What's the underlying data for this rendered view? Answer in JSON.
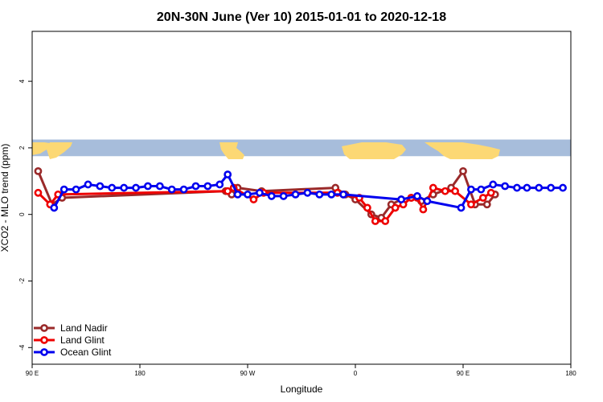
{
  "chart_data": {
    "type": "line",
    "title": "20N-30N June (Ver 10)   2015-01-01 to 2020-12-18",
    "xlabel": "Longitude",
    "ylabel": "XCO2 - MLO trend (ppm)",
    "xlim": [
      -90,
      180
    ],
    "ylim": [
      -4.5,
      5.5
    ],
    "x_ticks": [
      {
        "value": -90,
        "label": "90 E"
      },
      {
        "value": -36,
        "label": "180"
      },
      {
        "value": 18,
        "label": "90 W"
      },
      {
        "value": 72,
        "label": "0"
      },
      {
        "value": 126,
        "label": "90 E"
      },
      {
        "value": 180,
        "label": "180"
      }
    ],
    "y_ticks": [
      {
        "value": -4,
        "label": "-4"
      },
      {
        "value": -2,
        "label": "-2"
      },
      {
        "value": 0,
        "label": "0"
      },
      {
        "value": 2,
        "label": "2"
      },
      {
        "value": 4,
        "label": "4"
      }
    ],
    "map_band": {
      "y_range": [
        1.75,
        2.25
      ],
      "ocean_color": "#a7bddb",
      "land_color": "#fcd874"
    },
    "legend_position": "bottom-left",
    "series": [
      {
        "name": "Land Nadir",
        "color": "#9a2a2a",
        "x": [
          -87,
          -80,
          -75,
          7,
          10,
          13,
          25,
          62,
          67,
          72,
          80,
          85,
          90,
          95,
          100,
          105,
          111,
          120,
          126,
          132,
          138,
          142
        ],
        "y": [
          1.3,
          0.3,
          0.5,
          0.7,
          0.6,
          0.8,
          0.7,
          0.8,
          0.6,
          0.45,
          0.0,
          -0.1,
          0.3,
          0.45,
          0.5,
          0.4,
          0.6,
          0.8,
          1.3,
          0.3,
          0.3,
          0.6
        ]
      },
      {
        "name": "Land Glint",
        "color": "#ee0000",
        "x": [
          -87,
          -81,
          -77,
          8,
          11,
          21,
          26,
          63,
          66,
          74,
          78,
          82,
          87,
          92,
          96,
          100,
          103,
          106,
          111,
          117,
          122,
          130,
          136,
          140
        ],
        "y": [
          0.65,
          0.3,
          0.6,
          0.7,
          0.8,
          0.45,
          0.65,
          0.65,
          0.6,
          0.5,
          0.2,
          -0.2,
          -0.2,
          0.2,
          0.3,
          0.5,
          0.5,
          0.15,
          0.8,
          0.7,
          0.7,
          0.3,
          0.5,
          0.65
        ]
      },
      {
        "name": "Ocean Glint",
        "color": "#0000ee",
        "x": [
          -79,
          -74,
          -68,
          -62,
          -56,
          -50,
          -44,
          -38,
          -32,
          -26,
          -20,
          -14,
          -8,
          -2,
          4,
          8,
          13,
          18,
          24,
          30,
          36,
          42,
          48,
          54,
          60,
          66,
          95,
          103,
          108,
          125,
          130,
          135,
          141,
          147,
          153,
          158,
          164,
          170,
          176
        ],
        "y": [
          0.2,
          0.75,
          0.75,
          0.9,
          0.85,
          0.8,
          0.8,
          0.8,
          0.85,
          0.85,
          0.75,
          0.75,
          0.85,
          0.85,
          0.9,
          1.2,
          0.6,
          0.6,
          0.65,
          0.55,
          0.55,
          0.6,
          0.65,
          0.6,
          0.6,
          0.6,
          0.45,
          0.55,
          0.4,
          0.2,
          0.75,
          0.75,
          0.9,
          0.85,
          0.8,
          0.8,
          0.8,
          0.8,
          0.8
        ]
      }
    ]
  }
}
